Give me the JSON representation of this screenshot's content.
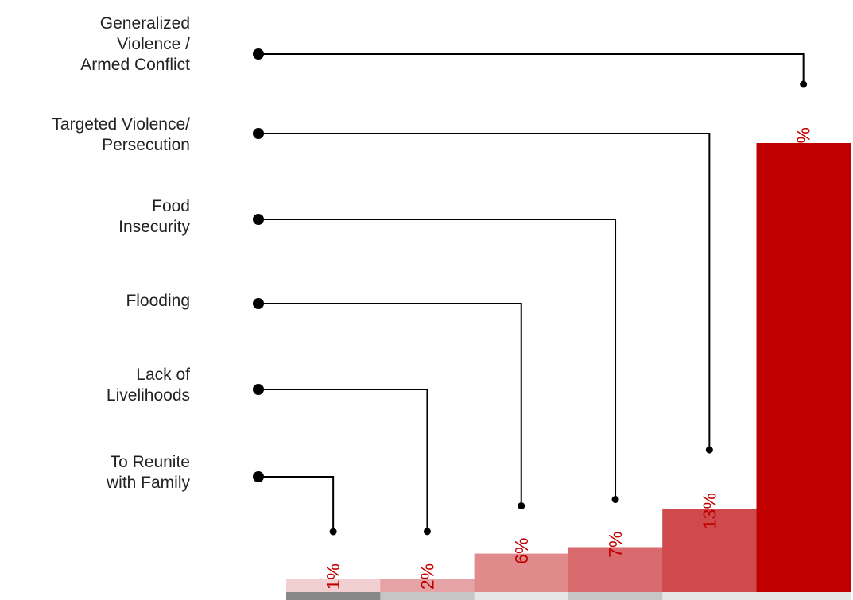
{
  "chart_data": {
    "type": "bar",
    "title": "",
    "xlabel": "",
    "ylabel": "",
    "categories": [
      "To  Reunite\nwith Family",
      "Lack of\nLivelihoods",
      "Flooding",
      "Food\nInsecurity",
      "Targeted Violence/\nPersecution",
      "Generalized\nViolence /\nArmed Conflict"
    ],
    "values": [
      1,
      2,
      6,
      7,
      13,
      70
    ],
    "value_labels": [
      "1%",
      "2%",
      "6%",
      "7%",
      "13%",
      "70%"
    ],
    "ylim": [
      0,
      70
    ],
    "grid": false,
    "legend": "none",
    "colors": {
      "bars": [
        "#f2d0d1",
        "#e6a3a5",
        "#e08a8c",
        "#d96a6d",
        "#d04a4d",
        "#c00000"
      ],
      "base_strip": [
        "#888888",
        "#c6c6c6",
        "#e6e6e6",
        "#c6c6c6",
        "#e6e6e6",
        "#e6e6e6"
      ],
      "value_text": "#c00000",
      "connector": "#000000",
      "label_text": "#222222"
    }
  }
}
